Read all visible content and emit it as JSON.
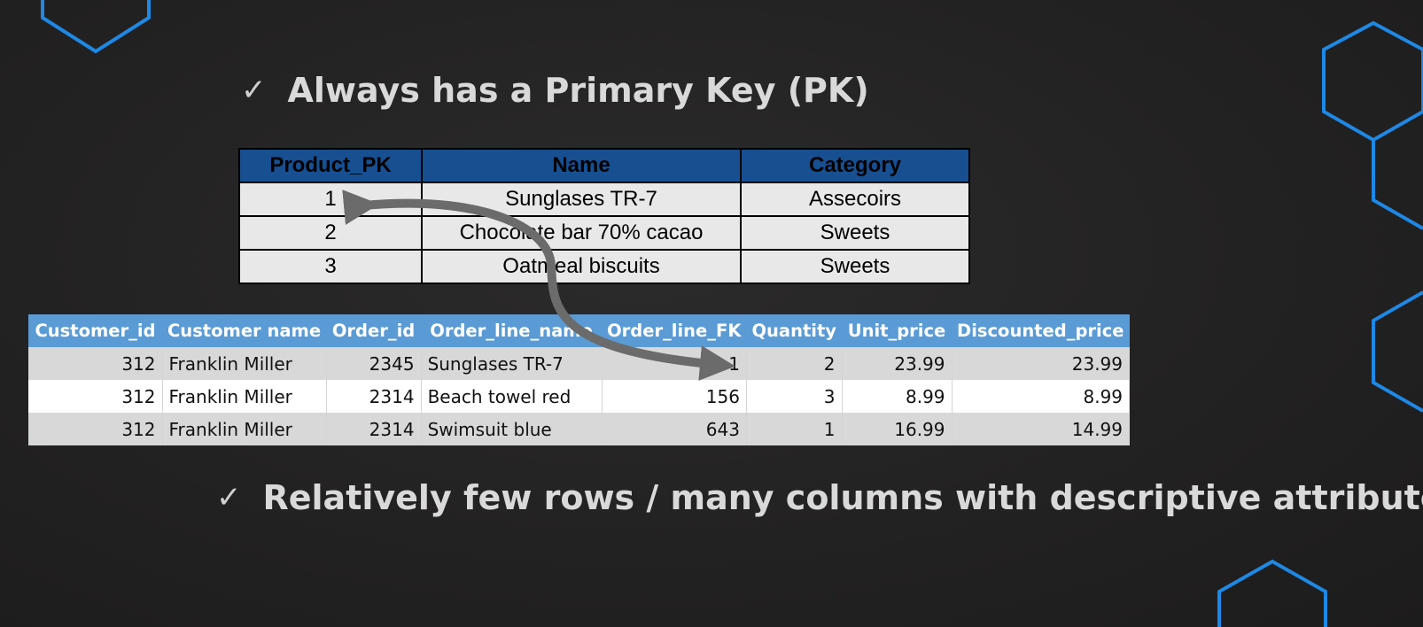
{
  "slide": {
    "bullets": [
      {
        "check": "✓",
        "text": "Always has a Primary Key (PK)"
      },
      {
        "check": "✓",
        "text": "Relatively few rows / many columns with descriptive attributes"
      }
    ]
  },
  "product_table": {
    "headers": [
      "Product_PK",
      "Name",
      "Category"
    ],
    "rows": [
      [
        "1",
        "Sunglases TR-7",
        "Assecoirs"
      ],
      [
        "2",
        "Chocolate bar 70% cacao",
        "Sweets"
      ],
      [
        "3",
        "Oatmeal biscuits",
        "Sweets"
      ]
    ]
  },
  "order_table": {
    "headers": [
      "Customer_id",
      "Customer name",
      "Order_id",
      "Order_line_name",
      "Order_line_FK",
      "Quantity",
      "Unit_price",
      "Discounted_price"
    ],
    "rows": [
      [
        "312",
        "Franklin Miller",
        "2345",
        "Sunglases TR-7",
        "1",
        "2",
        "23.99",
        "23.99"
      ],
      [
        "312",
        "Franklin Miller",
        "2314",
        "Beach towel red",
        "156",
        "3",
        "8.99",
        "8.99"
      ],
      [
        "312",
        "Franklin Miller",
        "2314",
        "Swimsuit blue",
        "643",
        "1",
        "16.99",
        "14.99"
      ]
    ]
  },
  "colors": {
    "background": "#232222",
    "hexagon_outline": "#1e88e5",
    "product_header": "#174f91",
    "order_header": "#5b9bd5",
    "arrow": "#6b6b6b"
  }
}
